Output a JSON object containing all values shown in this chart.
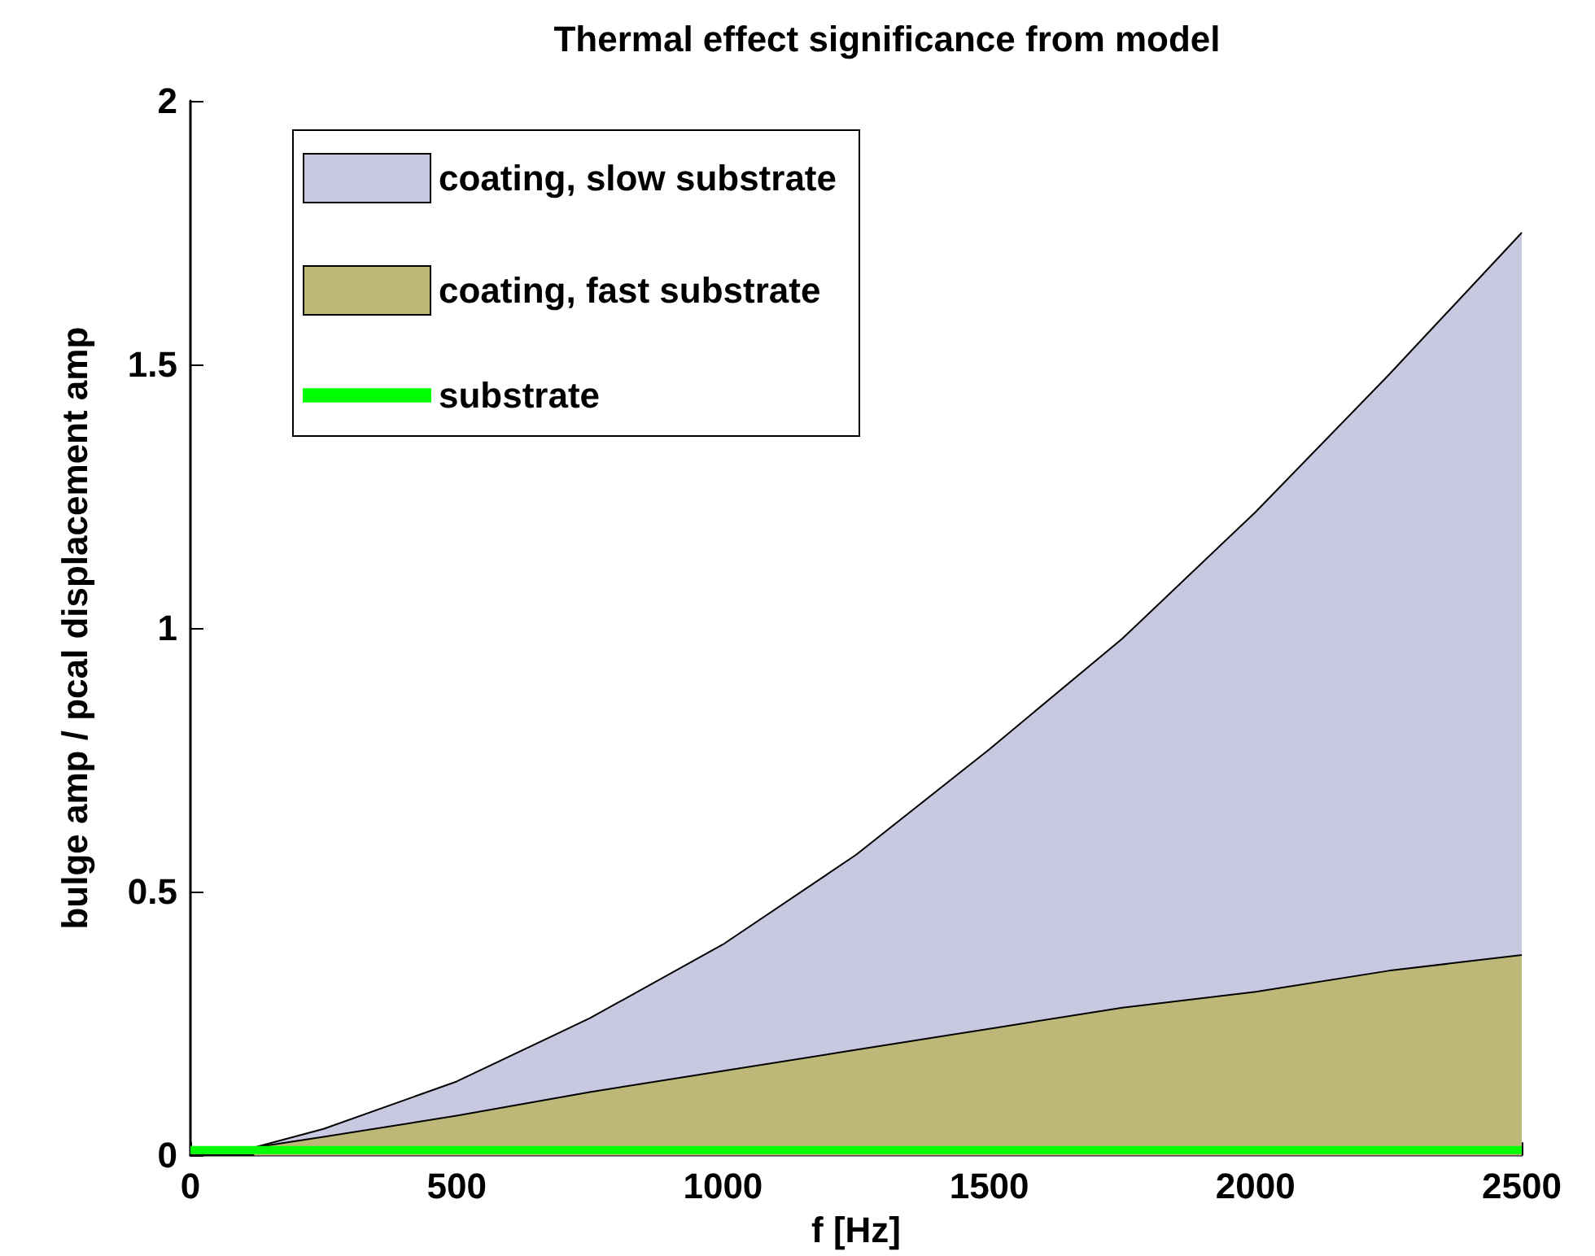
{
  "chart_data": {
    "type": "area",
    "title": "Thermal effect significance from model",
    "xlabel": "f [Hz]",
    "ylabel": "bulge amp / pcal displacement amp",
    "xlim": [
      0,
      2500
    ],
    "xticks": [
      0,
      500,
      1000,
      1500,
      2000,
      2500
    ],
    "ylim": [
      0,
      2
    ],
    "yticks": [
      0,
      0.5,
      1,
      1.5,
      2
    ],
    "grid": false,
    "legend": "top left",
    "marker": "none",
    "series": [
      {
        "name": "coating, slow substrate",
        "color": "#c8c8e0",
        "x": [
          120,
          250,
          500,
          750,
          1000,
          1250,
          1500,
          1750,
          2000,
          2250,
          2500
        ],
        "values": [
          0.015,
          0.05,
          0.14,
          0.26,
          0.4,
          0.57,
          0.77,
          0.98,
          1.22,
          1.48,
          1.75
        ]
      },
      {
        "name": "coating, fast substrate",
        "color": "#bdb878",
        "x": [
          120,
          250,
          500,
          750,
          1000,
          1250,
          1500,
          1750,
          2000,
          2250,
          2500
        ],
        "values": [
          0.015,
          0.035,
          0.075,
          0.12,
          0.16,
          0.2,
          0.24,
          0.28,
          0.31,
          0.35,
          0.38
        ]
      },
      {
        "name": "substrate",
        "type": "line",
        "color": "#00ff00",
        "x": [
          0,
          2500
        ],
        "values": [
          0.01,
          0.01
        ]
      }
    ]
  }
}
